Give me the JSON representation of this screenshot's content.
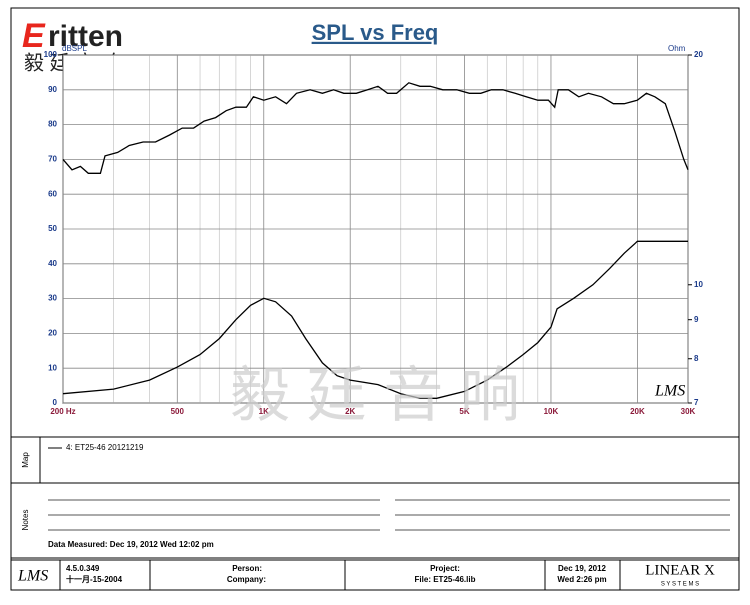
{
  "logo": {
    "initial": "E",
    "rest": "ritten",
    "subtitle": "毅 廷 音 响"
  },
  "watermark": "毅 廷 音 响",
  "chart_logo": "LMS",
  "chart_data": {
    "type": "line",
    "title": "SPL vs Freq",
    "ylabel": "dBSPL",
    "y2label": "Ohm",
    "xscale": "log",
    "y2scale": "log",
    "grid": true,
    "xlim": [
      200,
      30000
    ],
    "xticks": [
      {
        "value": 200,
        "label": "200 Hz"
      },
      500,
      {
        "value": 1000,
        "label": "1K"
      },
      {
        "value": 2000,
        "label": "2K"
      },
      {
        "value": 5000,
        "label": "5K"
      },
      {
        "value": 10000,
        "label": "10K"
      },
      {
        "value": 20000,
        "label": "20K"
      },
      {
        "value": 30000,
        "label": "30K"
      }
    ],
    "xgrid_minor": [
      300,
      400,
      600,
      700,
      800,
      900,
      3000,
      4000,
      6000,
      7000,
      8000,
      9000
    ],
    "ylim": [
      0,
      100
    ],
    "yticks": [
      0,
      10,
      20,
      30,
      40,
      50,
      60,
      70,
      80,
      90,
      100
    ],
    "y2lim": [
      7,
      20
    ],
    "y2ticks": [
      7,
      8,
      9,
      10,
      20
    ],
    "series": [
      {
        "name": "4: ET25-46 20121219",
        "color": "#000000",
        "x": [
          200,
          215,
          230,
          245,
          270,
          280,
          310,
          340,
          380,
          420,
          470,
          520,
          570,
          620,
          680,
          740,
          800,
          870,
          920,
          1000,
          1100,
          1200,
          1300,
          1450,
          1600,
          1750,
          1900,
          2100,
          2300,
          2500,
          2700,
          2900,
          3200,
          3500,
          3800,
          4200,
          4700,
          5200,
          5700,
          6200,
          6800,
          7500,
          8200,
          9000,
          9800,
          10300,
          10600,
          11500,
          12500,
          13500,
          15000,
          16500,
          18000,
          20000,
          21500,
          23000,
          25000,
          27000,
          29000,
          30000
        ],
        "values": [
          70,
          67,
          68,
          66,
          66,
          71,
          72,
          74,
          75,
          75,
          77,
          79,
          79,
          81,
          82,
          84,
          85,
          85,
          88,
          87,
          88,
          86,
          89,
          90,
          89,
          90,
          89,
          89,
          90,
          91,
          89,
          89,
          92,
          91,
          91,
          90,
          90,
          89,
          89,
          90,
          90,
          89,
          88,
          87,
          87,
          85,
          90,
          90,
          88,
          89,
          88,
          86,
          86,
          87,
          89,
          88,
          86,
          78,
          70,
          67
        ]
      },
      {
        "axis": "y2",
        "color": "#000000",
        "x": [
          200,
          300,
          400,
          500,
          600,
          700,
          800,
          900,
          1000,
          1100,
          1250,
          1400,
          1600,
          1800,
          2000,
          2500,
          3000,
          3500,
          4000,
          5000,
          6000,
          7000,
          8000,
          9000,
          10000,
          10500,
          12000,
          14000,
          16000,
          18000,
          20000,
          30000
        ],
        "values": [
          7.2,
          7.3,
          7.5,
          7.8,
          8.1,
          8.5,
          9.0,
          9.4,
          9.6,
          9.5,
          9.1,
          8.5,
          7.9,
          7.6,
          7.5,
          7.4,
          7.2,
          7.1,
          7.1,
          7.25,
          7.5,
          7.8,
          8.1,
          8.4,
          8.8,
          9.3,
          9.6,
          10.0,
          10.5,
          11.0,
          11.4,
          11.4
        ]
      }
    ]
  },
  "map": {
    "label": "Map"
  },
  "notes": {
    "label": "Notes",
    "measured": "Data Measured: Dec 19, 2012  Wed 12:02 pm"
  },
  "footer": {
    "logo": "LMS",
    "version": "4.5.0.349",
    "date_old": "十一月-15-2004",
    "person": "Person:",
    "company": "Company:",
    "project": "Project:",
    "file": "File: ET25-46.lib",
    "date": "Dec 19, 2012",
    "time": "Wed  2:26 pm",
    "brand": "LINEAR X",
    "brand_sub": "S Y S T E M S"
  }
}
